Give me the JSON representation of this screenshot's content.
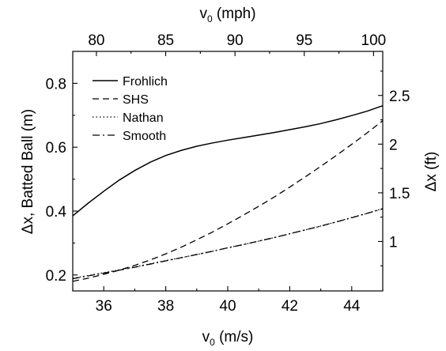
{
  "chart_data": {
    "type": "line",
    "xlabel": "v",
    "xlabel_sub": "0",
    "xlabel_unit": " (m/s)",
    "x2label": "v",
    "x2label_sub": "0",
    "x2label_unit": " (mph)",
    "ylabel": "Δx, Batted Ball (m)",
    "y2label": "Δx (ft)",
    "xlim": [
      35,
      45
    ],
    "ylim": [
      0.15,
      0.9
    ],
    "x_ticks": [
      36,
      38,
      40,
      42,
      44
    ],
    "x_tick_labels": [
      "36",
      "38",
      "40",
      "42",
      "44"
    ],
    "y_ticks": [
      0.2,
      0.4,
      0.6,
      0.8
    ],
    "y_tick_labels": [
      "0.2",
      "0.4",
      "0.6",
      "0.8"
    ],
    "x2_ticks_mph": [
      80,
      85,
      90,
      95,
      100
    ],
    "x2_tick_labels": [
      "80",
      "85",
      "90",
      "95",
      "100"
    ],
    "y2_ticks_ft": [
      1,
      1.5,
      2,
      2.5
    ],
    "y2_tick_labels": [
      "1",
      "1.5",
      "2",
      "2.5"
    ],
    "legend_position": "top-left",
    "grid": false,
    "series": [
      {
        "name": "Frohlich",
        "style": "solid",
        "x": [
          35,
          35.5,
          36,
          36.5,
          37,
          37.5,
          38,
          38.5,
          39,
          39.5,
          40,
          40.5,
          41,
          41.5,
          42,
          42.5,
          43,
          43.5,
          44,
          44.5,
          45
        ],
        "y": [
          0.385,
          0.425,
          0.462,
          0.497,
          0.527,
          0.553,
          0.574,
          0.59,
          0.603,
          0.613,
          0.622,
          0.63,
          0.638,
          0.646,
          0.655,
          0.664,
          0.674,
          0.686,
          0.699,
          0.713,
          0.73
        ]
      },
      {
        "name": "SHS",
        "style": "dashed",
        "x": [
          35,
          35.5,
          36,
          36.5,
          37,
          37.5,
          38,
          38.5,
          39,
          39.5,
          40,
          40.5,
          41,
          41.5,
          42,
          42.5,
          43,
          43.5,
          44,
          44.5,
          45
        ],
        "y": [
          0.18,
          0.19,
          0.202,
          0.215,
          0.23,
          0.247,
          0.266,
          0.287,
          0.31,
          0.334,
          0.36,
          0.387,
          0.415,
          0.444,
          0.475,
          0.507,
          0.54,
          0.574,
          0.609,
          0.645,
          0.683
        ]
      },
      {
        "name": "Nathan",
        "style": "dotted",
        "x": [
          35,
          35.5,
          36,
          36.5,
          37,
          37.5,
          38,
          38.5,
          39,
          39.5,
          40,
          40.5,
          41,
          41.5,
          42,
          42.5,
          43,
          43.5,
          44,
          44.5,
          45
        ],
        "y": [
          0.19,
          0.198,
          0.207,
          0.216,
          0.225,
          0.235,
          0.245,
          0.254,
          0.264,
          0.274,
          0.285,
          0.295,
          0.306,
          0.317,
          0.329,
          0.341,
          0.353,
          0.366,
          0.38,
          0.393,
          0.408
        ]
      },
      {
        "name": "Smooth",
        "style": "dashdot",
        "x": [
          35,
          35.5,
          36,
          36.5,
          37,
          37.5,
          38,
          38.5,
          39,
          39.5,
          40,
          40.5,
          41,
          41.5,
          42,
          42.5,
          43,
          43.5,
          44,
          44.5,
          45
        ],
        "y": [
          0.188,
          0.197,
          0.206,
          0.215,
          0.224,
          0.234,
          0.244,
          0.254,
          0.264,
          0.274,
          0.285,
          0.295,
          0.306,
          0.317,
          0.329,
          0.341,
          0.353,
          0.366,
          0.379,
          0.393,
          0.407
        ]
      }
    ]
  }
}
